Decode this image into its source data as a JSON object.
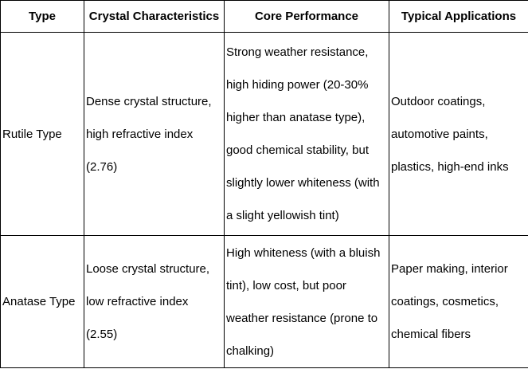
{
  "table": {
    "columns": [
      "Type",
      "Crystal Characteristics",
      "Core Performance",
      "Typical Applications"
    ],
    "rows": [
      {
        "type": "Rutile Type",
        "crystal_characteristics": "Dense crystal structure,\nhigh refractive index\n(2.76)",
        "core_performance": "Strong weather resistance,\nhigh hiding power (20-30%\nhigher than anatase type),\ngood chemical stability, but\nslightly lower whiteness (with\na slight yellowish tint)",
        "typical_applications": "Outdoor coatings,\nautomotive paints,\nplastics, high-end inks"
      },
      {
        "type": "Anatase Type",
        "crystal_characteristics": "Loose crystal structure,\nlow refractive index\n(2.55)",
        "core_performance": "High whiteness (with a bluish\ntint), low cost, but poor\nweather resistance (prone to\nchalking)",
        "typical_applications": "Paper making, interior\ncoatings, cosmetics,\nchemical fibers"
      }
    ],
    "colors": {
      "border": "#000000",
      "text": "#000000",
      "background": "#ffffff"
    }
  }
}
